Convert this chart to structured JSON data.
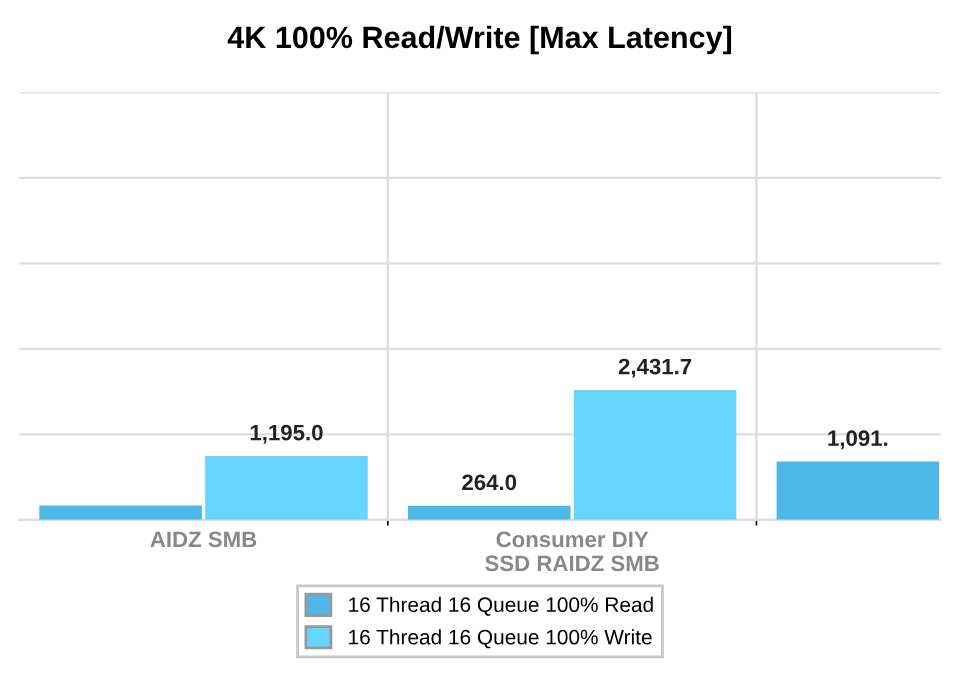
{
  "chart_data": {
    "type": "bar",
    "title": "4K 100% Read/Write [Max Latency]",
    "categories": [
      "AIDZ SMB",
      "Consumer DIY\nSSD RAIDZ SMB",
      null
    ],
    "series": [
      {
        "name": "16 Thread 16 Queue 100% Read",
        "color": "#4db8e8",
        "values": [
          270,
          264.0,
          1091
        ],
        "value_labels": [
          null,
          "264.0",
          "1,091."
        ]
      },
      {
        "name": "16 Thread 16 Queue 100% Write",
        "color": "#66d6ff",
        "values": [
          1195.0,
          2431.7,
          null
        ],
        "value_labels": [
          "1,195.0",
          "2,431.7",
          null
        ]
      }
    ],
    "ylim": [
      0,
      8000
    ],
    "yticks": [
      {
        "value": 0,
        "label": null
      },
      {
        "value": 1600,
        "label": null
      },
      {
        "value": 3200,
        "label": null
      },
      {
        "value": 4800,
        "label": null
      },
      {
        "value": 6400,
        "label": null
      },
      {
        "value": 8000,
        "label": null
      }
    ],
    "grid": true,
    "legend": "bottom"
  }
}
